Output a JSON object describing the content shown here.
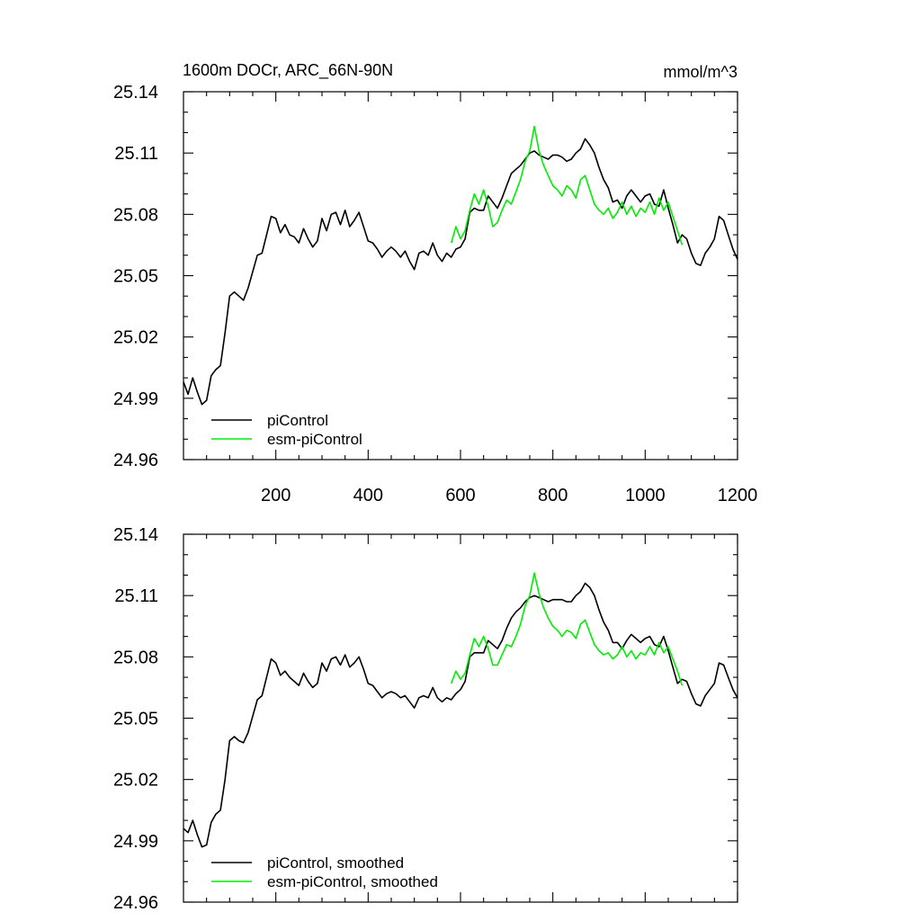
{
  "page": {
    "title_left": "1600m DOCr, ARC_66N-90N",
    "title_right": "mmol/m^3"
  },
  "colors": {
    "piControl": "#000000",
    "esm_piControl": "#00ee00"
  },
  "chart_data": [
    {
      "type": "line",
      "name": "raw",
      "xlim": [
        0,
        1200
      ],
      "ylim": [
        24.96,
        25.14
      ],
      "x_ticks": [
        200,
        400,
        600,
        800,
        1000,
        1200
      ],
      "x_tick_labels": [
        "200",
        "400",
        "600",
        "800",
        "1000",
        "1200"
      ],
      "y_ticks": [
        24.96,
        24.99,
        25.02,
        25.05,
        25.08,
        25.11,
        25.14
      ],
      "y_tick_labels": [
        "24.96",
        "24.99",
        "25.02",
        "25.05",
        "25.08",
        "25.11",
        "25.14"
      ],
      "legend_location": "bottom-left",
      "series": [
        {
          "name": "piControl",
          "color_key": "piControl",
          "x": [
            0,
            10,
            20,
            30,
            40,
            50,
            60,
            70,
            80,
            90,
            100,
            110,
            120,
            130,
            140,
            150,
            160,
            170,
            180,
            190,
            200,
            210,
            220,
            230,
            240,
            250,
            260,
            270,
            280,
            290,
            300,
            310,
            320,
            330,
            340,
            350,
            360,
            370,
            380,
            390,
            400,
            410,
            420,
            430,
            440,
            450,
            460,
            470,
            480,
            490,
            500,
            510,
            520,
            530,
            540,
            550,
            560,
            570,
            580,
            590,
            600,
            610,
            620,
            630,
            640,
            650,
            660,
            670,
            680,
            690,
            700,
            710,
            720,
            730,
            740,
            750,
            760,
            770,
            780,
            790,
            800,
            810,
            820,
            830,
            840,
            850,
            860,
            870,
            880,
            890,
            900,
            910,
            920,
            930,
            940,
            950,
            960,
            970,
            980,
            990,
            1000,
            1010,
            1020,
            1030,
            1040,
            1050,
            1060,
            1070,
            1080,
            1090,
            1100,
            1110,
            1120,
            1130,
            1140,
            1150,
            1160,
            1170,
            1180,
            1190,
            1200
          ],
          "y": [
            24.998,
            24.992,
            25.0,
            24.993,
            24.987,
            24.989,
            25.001,
            25.004,
            25.006,
            25.022,
            25.04,
            25.042,
            25.04,
            25.038,
            25.044,
            25.052,
            25.06,
            25.061,
            25.07,
            25.079,
            25.078,
            25.071,
            25.075,
            25.07,
            25.069,
            25.066,
            25.073,
            25.068,
            25.064,
            25.067,
            25.078,
            25.072,
            25.08,
            25.081,
            25.075,
            25.082,
            25.074,
            25.077,
            25.081,
            25.074,
            25.067,
            25.066,
            25.063,
            25.059,
            25.062,
            25.064,
            25.062,
            25.059,
            25.062,
            25.057,
            25.053,
            25.061,
            25.062,
            25.06,
            25.066,
            25.06,
            25.057,
            25.061,
            25.059,
            25.063,
            25.064,
            25.068,
            25.081,
            25.083,
            25.082,
            25.082,
            25.089,
            25.086,
            25.083,
            25.088,
            25.094,
            25.1,
            25.102,
            25.104,
            25.107,
            25.11,
            25.111,
            25.109,
            25.108,
            25.107,
            25.109,
            25.109,
            25.108,
            25.106,
            25.107,
            25.11,
            25.112,
            25.117,
            25.114,
            25.11,
            25.103,
            25.097,
            25.093,
            25.086,
            25.087,
            25.083,
            25.089,
            25.092,
            25.089,
            25.086,
            25.089,
            25.09,
            25.085,
            25.084,
            25.092,
            25.083,
            25.075,
            25.066,
            25.07,
            25.068,
            25.061,
            25.056,
            25.055,
            25.061,
            25.064,
            25.068,
            25.079,
            25.077,
            25.07,
            25.063,
            25.058
          ]
        },
        {
          "name": "esm-piControl",
          "color_key": "esm_piControl",
          "x": [
            580,
            590,
            600,
            610,
            620,
            630,
            640,
            650,
            660,
            670,
            680,
            690,
            700,
            710,
            720,
            730,
            740,
            750,
            760,
            770,
            780,
            790,
            800,
            810,
            820,
            830,
            840,
            850,
            860,
            870,
            880,
            890,
            900,
            910,
            920,
            930,
            940,
            950,
            960,
            970,
            980,
            990,
            1000,
            1010,
            1020,
            1030,
            1040,
            1050,
            1060,
            1070,
            1080
          ],
          "y": [
            25.066,
            25.074,
            25.068,
            25.072,
            25.082,
            25.09,
            25.085,
            25.092,
            25.084,
            25.074,
            25.076,
            25.082,
            25.087,
            25.085,
            25.091,
            25.097,
            25.106,
            25.111,
            25.123,
            25.111,
            25.104,
            25.099,
            25.094,
            25.092,
            25.089,
            25.094,
            25.092,
            25.088,
            25.097,
            25.099,
            25.092,
            25.085,
            25.082,
            25.08,
            25.083,
            25.078,
            25.081,
            25.086,
            25.08,
            25.084,
            25.079,
            25.083,
            25.081,
            25.086,
            25.08,
            25.088,
            25.082,
            25.086,
            25.079,
            25.072,
            25.065
          ]
        }
      ],
      "legend": [
        "piControl",
        "esm-piControl"
      ]
    },
    {
      "type": "line",
      "name": "smoothed",
      "xlim": [
        0,
        1200
      ],
      "ylim": [
        24.96,
        25.14
      ],
      "x_ticks": [
        200,
        400,
        600,
        800,
        1000,
        1200
      ],
      "x_tick_labels": [],
      "y_ticks": [
        24.96,
        24.99,
        25.02,
        25.05,
        25.08,
        25.11,
        25.14
      ],
      "y_tick_labels": [
        "24.96",
        "24.99",
        "25.02",
        "25.05",
        "25.08",
        "25.11",
        "25.14"
      ],
      "legend_location": "bottom-left",
      "series": [
        {
          "name": "piControl, smoothed",
          "color_key": "piControl",
          "x": [
            0,
            10,
            20,
            30,
            40,
            50,
            60,
            70,
            80,
            90,
            100,
            110,
            120,
            130,
            140,
            150,
            160,
            170,
            180,
            190,
            200,
            210,
            220,
            230,
            240,
            250,
            260,
            270,
            280,
            290,
            300,
            310,
            320,
            330,
            340,
            350,
            360,
            370,
            380,
            390,
            400,
            410,
            420,
            430,
            440,
            450,
            460,
            470,
            480,
            490,
            500,
            510,
            520,
            530,
            540,
            550,
            560,
            570,
            580,
            590,
            600,
            610,
            620,
            630,
            640,
            650,
            660,
            670,
            680,
            690,
            700,
            710,
            720,
            730,
            740,
            750,
            760,
            770,
            780,
            790,
            800,
            810,
            820,
            830,
            840,
            850,
            860,
            870,
            880,
            890,
            900,
            910,
            920,
            930,
            940,
            950,
            960,
            970,
            980,
            990,
            1000,
            1010,
            1020,
            1030,
            1040,
            1050,
            1060,
            1070,
            1080,
            1090,
            1100,
            1110,
            1120,
            1130,
            1140,
            1150,
            1160,
            1170,
            1180,
            1190,
            1200
          ],
          "y": [
            24.996,
            24.994,
            25.0,
            24.993,
            24.987,
            24.988,
            24.999,
            25.003,
            25.005,
            25.02,
            25.039,
            25.041,
            25.039,
            25.038,
            25.043,
            25.051,
            25.059,
            25.061,
            25.07,
            25.079,
            25.077,
            25.071,
            25.073,
            25.07,
            25.068,
            25.066,
            25.072,
            25.068,
            25.065,
            25.067,
            25.077,
            25.073,
            25.079,
            25.08,
            25.076,
            25.081,
            25.075,
            25.077,
            25.08,
            25.074,
            25.067,
            25.066,
            25.063,
            25.06,
            25.062,
            25.063,
            25.062,
            25.06,
            25.061,
            25.058,
            25.055,
            25.06,
            25.061,
            25.06,
            25.065,
            25.06,
            25.058,
            25.06,
            25.059,
            25.062,
            25.064,
            25.068,
            25.08,
            25.082,
            25.082,
            25.082,
            25.088,
            25.086,
            25.084,
            25.088,
            25.094,
            25.099,
            25.102,
            25.104,
            25.107,
            25.109,
            25.11,
            25.109,
            25.108,
            25.107,
            25.108,
            25.108,
            25.108,
            25.107,
            25.107,
            25.11,
            25.112,
            25.116,
            25.114,
            25.11,
            25.103,
            25.097,
            25.093,
            25.087,
            25.087,
            25.084,
            25.088,
            25.091,
            25.089,
            25.087,
            25.089,
            25.09,
            25.086,
            25.085,
            25.09,
            25.083,
            25.075,
            25.067,
            25.069,
            25.068,
            25.062,
            25.057,
            25.056,
            25.061,
            25.064,
            25.067,
            25.077,
            25.076,
            25.07,
            25.064,
            25.06
          ]
        },
        {
          "name": "esm-piControl, smoothed",
          "color_key": "esm_piControl",
          "x": [
            580,
            590,
            600,
            610,
            620,
            630,
            640,
            650,
            660,
            670,
            680,
            690,
            700,
            710,
            720,
            730,
            740,
            750,
            760,
            770,
            780,
            790,
            800,
            810,
            820,
            830,
            840,
            850,
            860,
            870,
            880,
            890,
            900,
            910,
            920,
            930,
            940,
            950,
            960,
            970,
            980,
            990,
            1000,
            1010,
            1020,
            1030,
            1040,
            1050,
            1060,
            1070,
            1080
          ],
          "y": [
            25.067,
            25.073,
            25.069,
            25.072,
            25.081,
            25.089,
            25.085,
            25.09,
            25.084,
            25.076,
            25.076,
            25.081,
            25.086,
            25.085,
            25.09,
            25.096,
            25.105,
            25.11,
            25.121,
            25.111,
            25.104,
            25.099,
            25.095,
            25.093,
            25.09,
            25.093,
            25.092,
            25.089,
            25.096,
            25.098,
            25.092,
            25.086,
            25.083,
            25.081,
            25.082,
            25.079,
            25.081,
            25.085,
            25.08,
            25.083,
            25.079,
            25.082,
            25.081,
            25.085,
            25.081,
            25.087,
            25.082,
            25.085,
            25.079,
            25.073,
            25.066
          ]
        }
      ],
      "legend": [
        "piControl, smoothed",
        "esm-piControl, smoothed"
      ]
    }
  ]
}
